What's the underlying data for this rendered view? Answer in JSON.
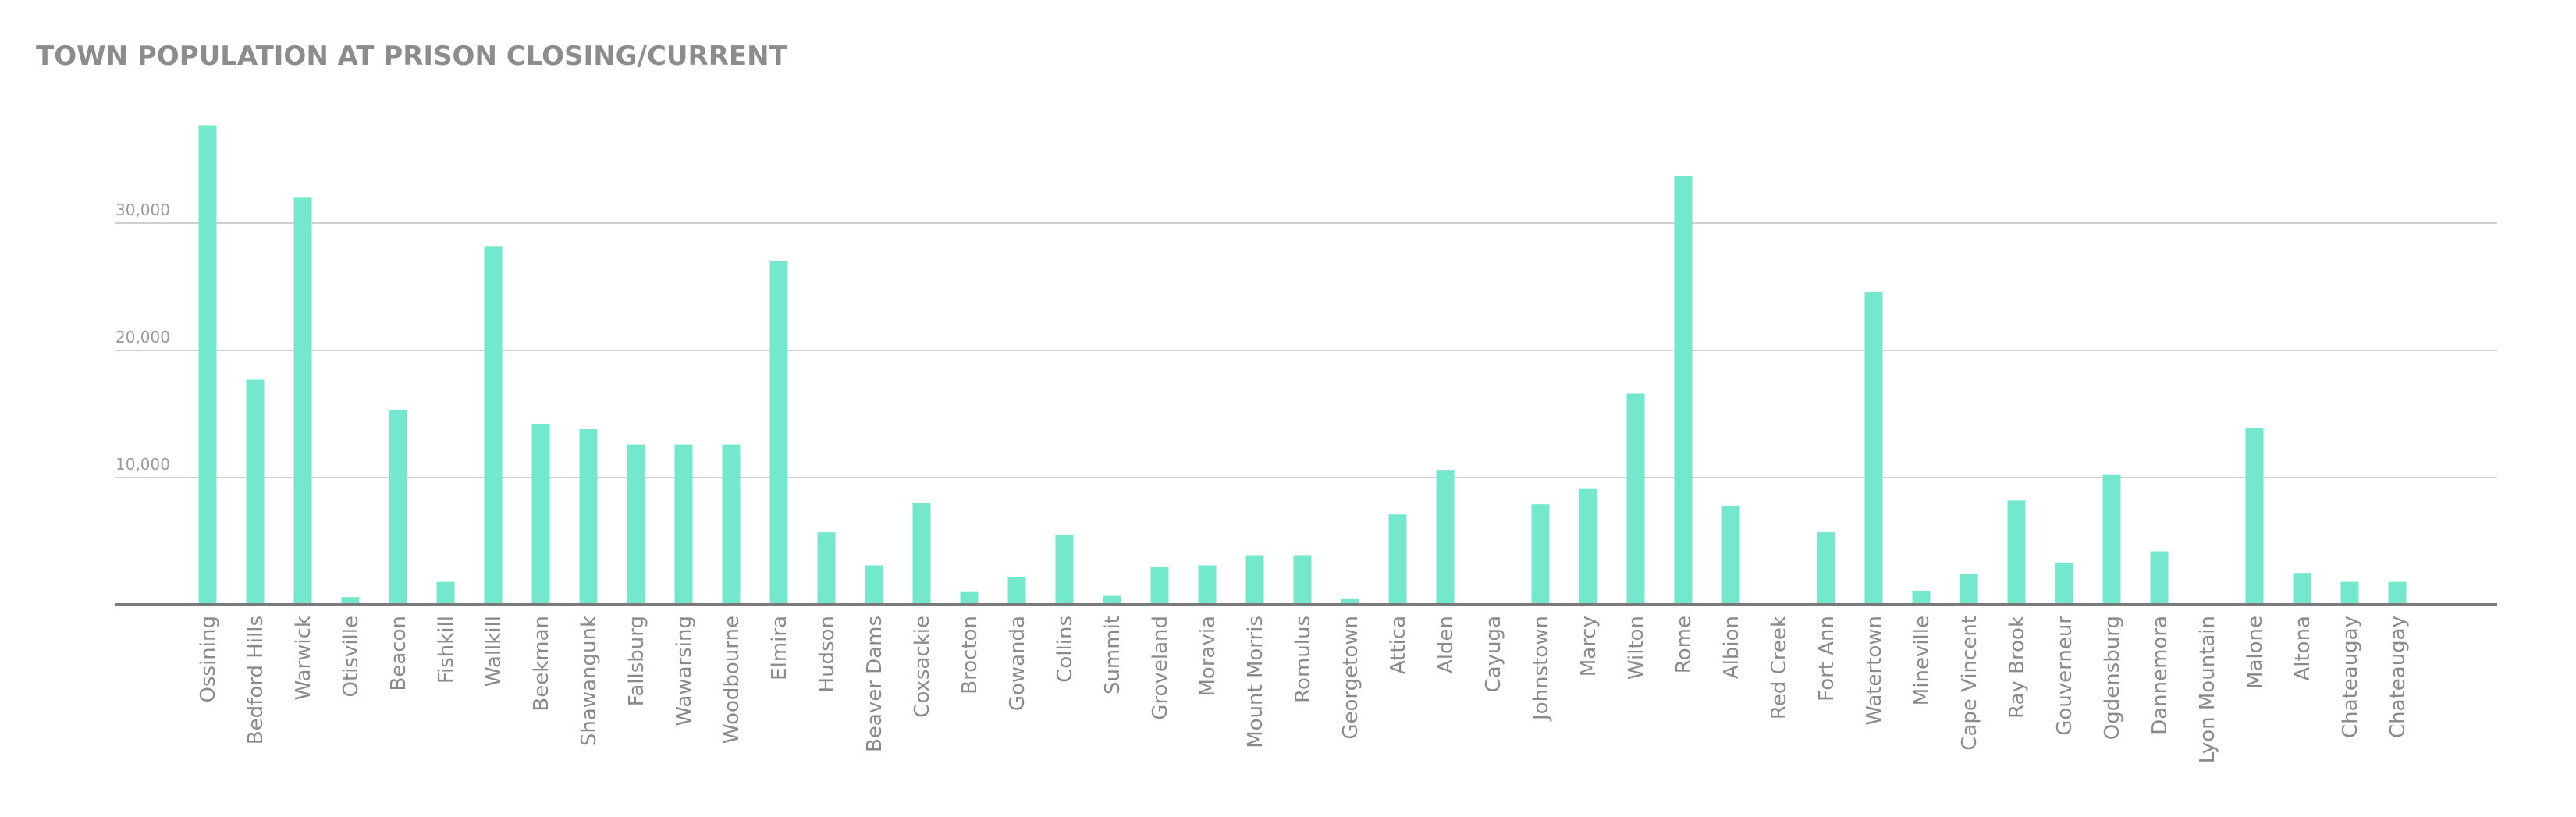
{
  "chart_data": {
    "type": "bar",
    "title": "TOWN POPULATION AT PRISON CLOSING/CURRENT",
    "xlabel": "",
    "ylabel": "",
    "ylim": [
      0,
      40000
    ],
    "y_ticks": [
      {
        "value": 10000,
        "label": "10,000"
      },
      {
        "value": 20000,
        "label": "20,000"
      },
      {
        "value": 30000,
        "label": "30,000"
      }
    ],
    "grid": true,
    "bar_color": "#73e8cc",
    "categories": [
      "Ossining",
      "Bedford Hills",
      "Warwick",
      "Otisville",
      "Beacon",
      "Fishkill",
      "Wallkill",
      "Beekman",
      "Shawangunk",
      "Fallsburg",
      "Wawarsing",
      "Woodbourne",
      "Elmira",
      "Hudson",
      "Beaver Dams",
      "Coxsackie",
      "Brocton",
      "Gowanda",
      "Collins",
      "Summit",
      "Groveland",
      "Moravia",
      "Mount Morris",
      "Romulus",
      "Georgetown",
      "Attica",
      "Alden",
      "Cayuga",
      "Johnstown",
      "Marcy",
      "Wilton",
      "Rome",
      "Albion",
      "Red Creek",
      "Fort Ann",
      "Watertown",
      "Mineville",
      "Cape Vincent",
      "Ray Brook",
      "Gouverneur",
      "Ogdensburg",
      "Dannemora",
      "Lyon Mountain",
      "Malone",
      "Altona",
      "Chateaugay",
      "Chateaugay"
    ],
    "values": [
      37700,
      17700,
      32000,
      600,
      15300,
      1800,
      28200,
      14200,
      13800,
      12600,
      12600,
      12600,
      27000,
      5700,
      3100,
      8000,
      1000,
      2200,
      5500,
      700,
      3000,
      3100,
      3900,
      3900,
      500,
      7100,
      10600,
      0,
      7900,
      9100,
      16600,
      33700,
      7800,
      0,
      5700,
      24600,
      1100,
      2400,
      8200,
      3300,
      10200,
      4200,
      0,
      13900,
      2500,
      1800,
      1800
    ]
  }
}
